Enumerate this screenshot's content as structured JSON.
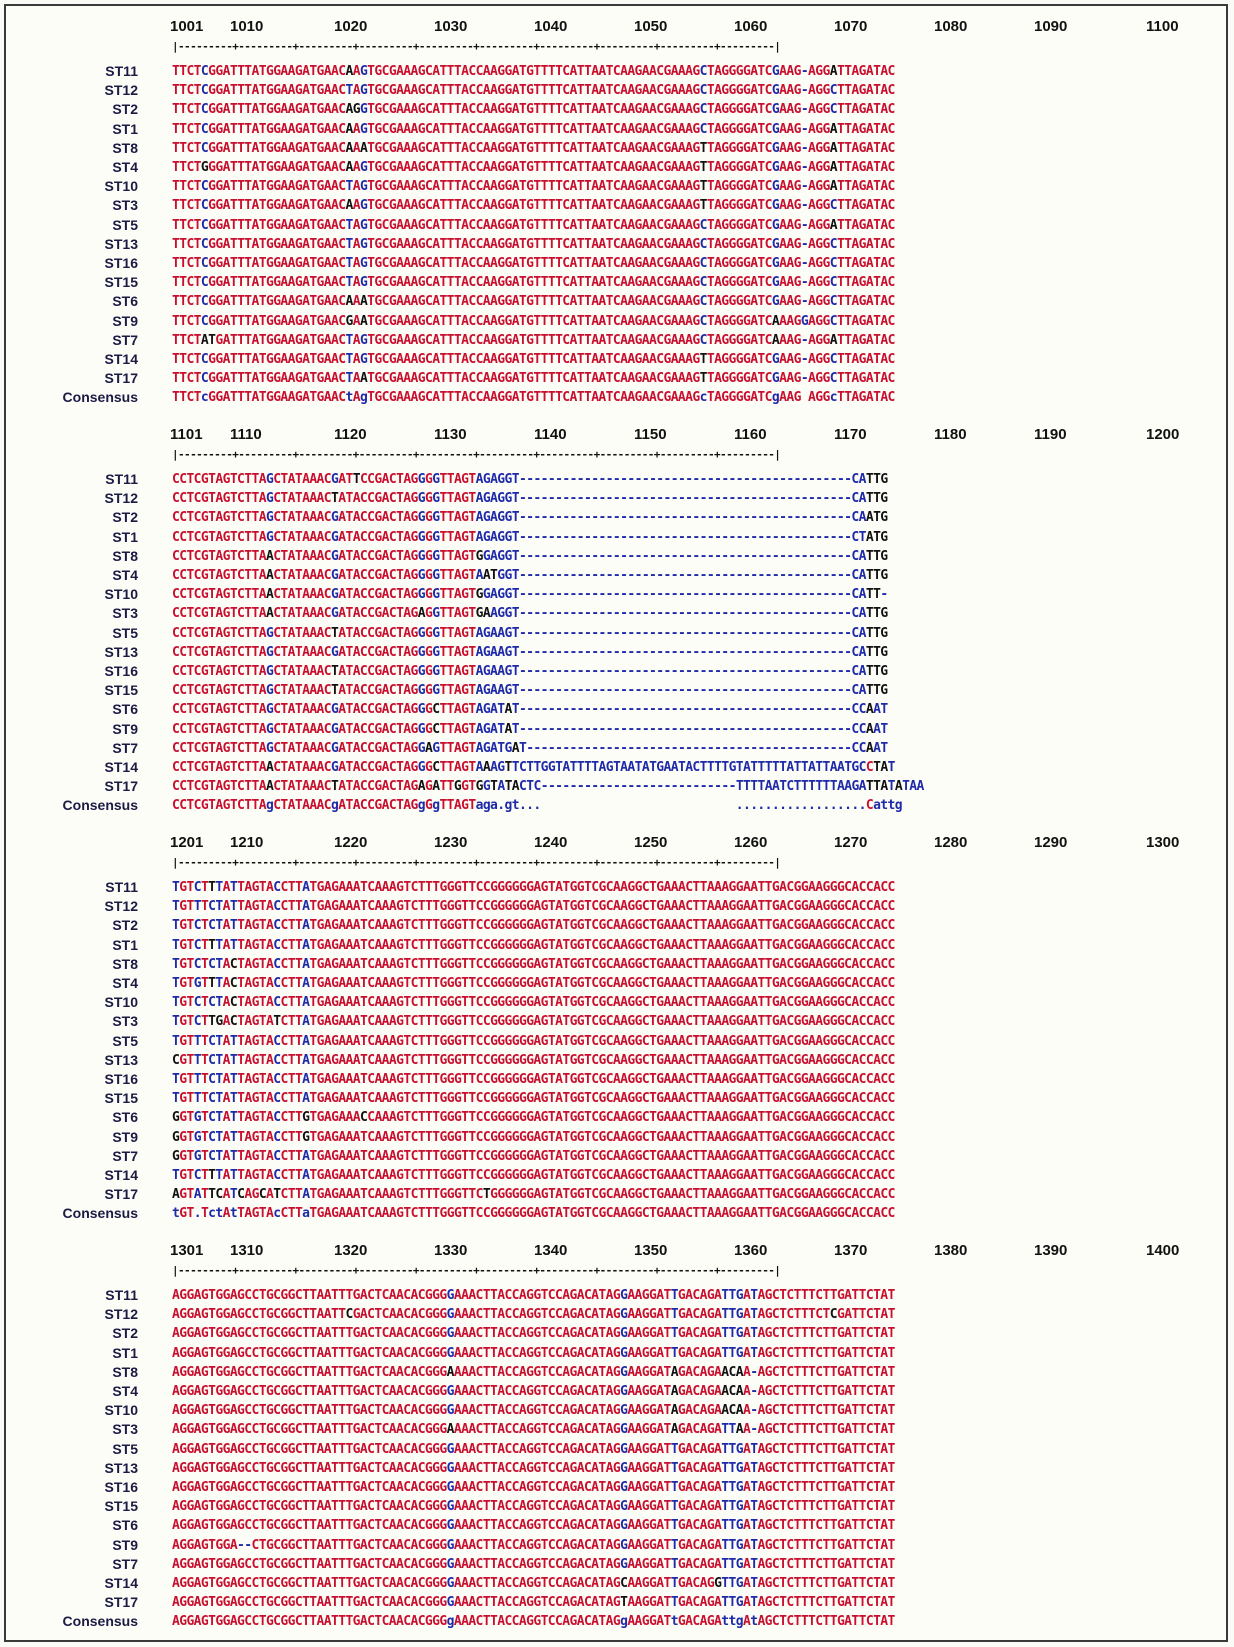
{
  "alignment": {
    "colors": {
      "high": "#c8102e",
      "low": "#1e2aa8",
      "neutral": "#111111"
    },
    "blocks": [
      {
        "start": "1001",
        "ticks": [
          "1001",
          "1010",
          "1020",
          "1030",
          "1040",
          "1050",
          "1060",
          "1070",
          "1080",
          "1090",
          "1100"
        ],
        "rows": [
          {
            "name": "ST11",
            "seq": "TTCTCGGATTTATGGAAGATGAACAAGTGCGAAAGCATTTACCAAGGATGTTTTCATTAATCAAGAACGAAAGCTAGGGGATCGAAG-AGGATTAGATAC"
          },
          {
            "name": "ST12",
            "seq": "TTCTCGGATTTATGGAAGATGAACTAGTGCGAAAGCATTTACCAAGGATGTTTTCATTAATCAAGAACGAAAGCTAGGGGATCGAAG-AGGCTTAGATAC"
          },
          {
            "name": "ST2",
            "seq": "TTCTCGGATTTATGGAAGATGAACAGGTGCGAAAGCATTTACCAAGGATGTTTTCATTAATCAAGAACGAAAGCTAGGGGATCGAAG-AGGCTTAGATAC"
          },
          {
            "name": "ST1",
            "seq": "TTCTCGGATTTATGGAAGATGAACAAGTGCGAAAGCATTTACCAAGGATGTTTTCATTAATCAAGAACGAAAGCTAGGGGATCGAAG-AGGATTAGATAC"
          },
          {
            "name": "ST8",
            "seq": "TTCTCGGATTTATGGAAGATGAACAAATGCGAAAGCATTTACCAAGGATGTTTTCATTAATCAAGAACGAAAGTTAGGGGATCGAAG-AGGATTAGATAC"
          },
          {
            "name": "ST4",
            "seq": "TTCTGGGATTTATGGAAGATGAACAAGTGCGAAAGCATTTACCAAGGATGTTTTCATTAATCAAGAACGAAAGTTAGGGGATCGAAG-AGGATTAGATAC"
          },
          {
            "name": "ST10",
            "seq": "TTCTCGGATTTATGGAAGATGAACTAGTGCGAAAGCATTTACCAAGGATGTTTTCATTAATCAAGAACGAAAGTTAGGGGATCGAAG-AGGATTAGATAC"
          },
          {
            "name": "ST3",
            "seq": "TTCTCGGATTTATGGAAGATGAACAAGTGCGAAAGCATTTACCAAGGATGTTTTCATTAATCAAGAACGAAAGTTAGGGGATCGAAG-AGGCTTAGATAC"
          },
          {
            "name": "ST5",
            "seq": "TTCTCGGATTTATGGAAGATGAACTAGTGCGAAAGCATTTACCAAGGATGTTTTCATTAATCAAGAACGAAAGCTAGGGGATCGAAG-AGGATTAGATAC"
          },
          {
            "name": "ST13",
            "seq": "TTCTCGGATTTATGGAAGATGAACTAGTGCGAAAGCATTTACCAAGGATGTTTTCATTAATCAAGAACGAAAGCTAGGGGATCGAAG-AGGCTTAGATAC"
          },
          {
            "name": "ST16",
            "seq": "TTCTCGGATTTATGGAAGATGAACTAGTGCGAAAGCATTTACCAAGGATGTTTTCATTAATCAAGAACGAAAGCTAGGGGATCGAAG-AGGCTTAGATAC"
          },
          {
            "name": "ST15",
            "seq": "TTCTCGGATTTATGGAAGATGAACTAGTGCGAAAGCATTTACCAAGGATGTTTTCATTAATCAAGAACGAAAGCTAGGGGATCGAAG-AGGCTTAGATAC"
          },
          {
            "name": "ST6",
            "seq": "TTCTCGGATTTATGGAAGATGAACAAATGCGAAAGCATTTACCAAGGATGTTTTCATTAATCAAGAACGAAAGCTAGGGGATCGAAG-AGGCTTAGATAC"
          },
          {
            "name": "ST9",
            "seq": "TTCTCGGATTTATGGAAGATGAACGAATGCGAAAGCATTTACCAAGGATGTTTTCATTAATCAAGAACGAAAGCTAGGGGATCAAAGGAGGCTTAGATAC"
          },
          {
            "name": "ST7",
            "seq": "TTCTATGATTTATGGAAGATGAACTAGTGCGAAAGCATTTACCAAGGATGTTTTCATTAATCAAGAACGAAAGCTAGGGGATCAAAG-AGGATTAGATAC"
          },
          {
            "name": "ST14",
            "seq": "TTCTCGGATTTATGGAAGATGAACTAGTGCGAAAGCATTTACCAAGGATGTTTTCATTAATCAAGAACGAAAGTTAGGGGATCGAAG-AGGCTTAGATAC"
          },
          {
            "name": "ST17",
            "seq": "TTCTCGGATTTATGGAAGATGAACTAATGCGAAAGCATTTACCAAGGATGTTTTCATTAATCAAGAACGAAAGTTAGGGGATCGAAG-AGGCTTAGATAC"
          },
          {
            "name": "Consensus",
            "seq": "TTCTcGGATTTATGGAAGATGAACtAgTGCGAAAGCATTTACCAAGGATGTTTTCATTAATCAAGAACGAAAGcTAGGGGATCgAAG AGGcTTAGATAC"
          }
        ]
      },
      {
        "start": "1101",
        "ticks": [
          "1101",
          "1110",
          "1120",
          "1130",
          "1140",
          "1150",
          "1160",
          "1170",
          "1180",
          "1190",
          "1200"
        ],
        "rows": [
          {
            "name": "ST11",
            "seq": "CCTCGTAGTCTTAGCTATAAACGATTCCGACTAGGGGTTAGTAGAGGT----------------------------------------------CATTG"
          },
          {
            "name": "ST12",
            "seq": "CCTCGTAGTCTTAGCTATAAACTATACCGACTAGGGGTTAGTAGAGGT----------------------------------------------CATTG"
          },
          {
            "name": "ST2",
            "seq": "CCTCGTAGTCTTAGCTATAAACGATACCGACTAGGGGTTAGTAGAGGT----------------------------------------------CAATG"
          },
          {
            "name": "ST1",
            "seq": "CCTCGTAGTCTTAGCTATAAACGATACCGACTAGGGGTTAGTAGAGGT----------------------------------------------CTATG"
          },
          {
            "name": "ST8",
            "seq": "CCTCGTAGTCTTAACTATAAACGATACCGACTAGGGGTTAGTGGAGGT----------------------------------------------CATTG"
          },
          {
            "name": "ST4",
            "seq": "CCTCGTAGTCTTAACTATAAACGATACCGACTAGGGGTTAGTAATGGT----------------------------------------------CATTG"
          },
          {
            "name": "ST10",
            "seq": "CCTCGTAGTCTTAACTATAAACGATACCGACTAGGGGTTAGTGGAGGT----------------------------------------------CATT-"
          },
          {
            "name": "ST3",
            "seq": "CCTCGTAGTCTTAACTATAAACGATACCGACTAGAGGTTAGTGAAGGT----------------------------------------------CATTG"
          },
          {
            "name": "ST5",
            "seq": "CCTCGTAGTCTTAGCTATAAACTATACCGACTAGGGGTTAGTAGAAGT----------------------------------------------CATTG"
          },
          {
            "name": "ST13",
            "seq": "CCTCGTAGTCTTAGCTATAAACGATACCGACTAGGGGTTAGTAGAAGT----------------------------------------------CATTG"
          },
          {
            "name": "ST16",
            "seq": "CCTCGTAGTCTTAGCTATAAACTATACCGACTAGGGGTTAGTAGAAGT----------------------------------------------CATTG"
          },
          {
            "name": "ST15",
            "seq": "CCTCGTAGTCTTAGCTATAAACTATACCGACTAGGGGTTAGTAGAAGT----------------------------------------------CATTG"
          },
          {
            "name": "ST6",
            "seq": "CCTCGTAGTCTTAGCTATAAACGATACCGACTAGGGCTTAGTAGATAT----------------------------------------------CCAAT"
          },
          {
            "name": "ST9",
            "seq": "CCTCGTAGTCTTAGCTATAAACGATACCGACTAGGGCTTAGTAGATAT----------------------------------------------CCAAT"
          },
          {
            "name": "ST7",
            "seq": "CCTCGTAGTCTTAGCTATAAACGATACCGACTAGGAGTTAGTAGATGAT---------------------------------------------CCAAT"
          },
          {
            "name": "ST14",
            "seq": "CCTCGTAGTCTTAACTATAAACGATACCGACTAGGGCTTAGTAAAGTTCTTGGTATTTTAGTAATATGAATACTTTTGTATTTTTATTATTAATGCCTAT"
          },
          {
            "name": "ST17",
            "seq": "CCTCGTAGTCTTAACTATAAACTATACCGACTAGAGATTGGTGGTATACTC---------------------------TTTTAATCTTTTTTAAGATTATATAA"
          },
          {
            "name": "Consensus",
            "seq": "CCTCGTAGTCTTAgCTATAAACgATACCGACTAGgGgTTAGTaga.gt...                           ..................Cattg"
          }
        ]
      },
      {
        "start": "1201",
        "ticks": [
          "1201",
          "1210",
          "1220",
          "1230",
          "1240",
          "1250",
          "1260",
          "1270",
          "1280",
          "1290",
          "1300"
        ],
        "rows": [
          {
            "name": "ST11",
            "seq": "TGTCTTTATTAGTACCTTATGAGAAATCAAAGTCTTTGGGTTCCGGGGGGAGTATGGTCGCAAGGCTGAAACTTAAAGGAATTGACGGAAGGGCACCACC"
          },
          {
            "name": "ST12",
            "seq": "TGTTTCTATTAGTACCTTATGAGAAATCAAAGTCTTTGGGTTCCGGGGGGAGTATGGTCGCAAGGCTGAAACTTAAAGGAATTGACGGAAGGGCACCACC"
          },
          {
            "name": "ST2",
            "seq": "TGTCTCTATTAGTACCTTATGAGAAATCAAAGTCTTTGGGTTCCGGGGGGAGTATGGTCGCAAGGCTGAAACTTAAAGGAATTGACGGAAGGGCACCACC"
          },
          {
            "name": "ST1",
            "seq": "TGTCTTTATTAGTACCTTATGAGAAATCAAAGTCTTTGGGTTCCGGGGGGAGTATGGTCGCAAGGCTGAAACTTAAAGGAATTGACGGAAGGGCACCACC"
          },
          {
            "name": "ST8",
            "seq": "TGTCTCTACTAGTACCTTATGAGAAATCAAAGTCTTTGGGTTCCGGGGGGAGTATGGTCGCAAGGCTGAAACTTAAAGGAATTGACGGAAGGGCACCACC"
          },
          {
            "name": "ST4",
            "seq": "TGTGTTTACTAGTACCTTATGAGAAATCAAAGTCTTTGGGTTCCGGGGGGAGTATGGTCGCAAGGCTGAAACTTAAAGGAATTGACGGAAGGGCACCACC"
          },
          {
            "name": "ST10",
            "seq": "TGTCTCTACTAGTACCTTATGAGAAATCAAAGTCTTTGGGTTCCGGGGGGAGTATGGTCGCAAGGCTGAAACTTAAAGGAATTGACGGAAGGGCACCACC"
          },
          {
            "name": "ST3",
            "seq": "TGTCTTGACTAGTATCTTATGAGAAATCAAAGTCTTTGGGTTCCGGGGGGAGTATGGTCGCAAGGCTGAAACTTAAAGGAATTGACGGAAGGGCACCACC"
          },
          {
            "name": "ST5",
            "seq": "TGTTTCTATTAGTACCTTATGAGAAATCAAAGTCTTTGGGTTCCGGGGGGAGTATGGTCGCAAGGCTGAAACTTAAAGGAATTGACGGAAGGGCACCACC"
          },
          {
            "name": "ST13",
            "seq": "CGTTTCTATTAGTACCTTATGAGAAATCAAAGTCTTTGGGTTCCGGGGGGAGTATGGTCGCAAGGCTGAAACTTAAAGGAATTGACGGAAGGGCACCACC"
          },
          {
            "name": "ST16",
            "seq": "TGTTTCTATTAGTACCTTATGAGAAATCAAAGTCTTTGGGTTCCGGGGGGAGTATGGTCGCAAGGCTGAAACTTAAAGGAATTGACGGAAGGGCACCACC"
          },
          {
            "name": "ST15",
            "seq": "TGTTTCTATTAGTACCTTATGAGAAATCAAAGTCTTTGGGTTCCGGGGGGAGTATGGTCGCAAGGCTGAAACTTAAAGGAATTGACGGAAGGGCACCACC"
          },
          {
            "name": "ST6",
            "seq": "GGTGTCTATTAGTACCTTGTGAGAAACCAAAGTCTTTGGGTTCCGGGGGGAGTATGGTCGCAAGGCTGAAACTTAAAGGAATTGACGGAAGGGCACCACC"
          },
          {
            "name": "ST9",
            "seq": "GGTGTCTATTAGTACCTTGTGAGAAATCAAAGTCTTTGGGTTCCGGGGGGAGTATGGTCGCAAGGCTGAAACTTAAAGGAATTGACGGAAGGGCACCACC"
          },
          {
            "name": "ST7",
            "seq": "GGTGTCTATTAGTACCTTATGAGAAATCAAAGTCTTTGGGTTCCGGGGGGAGTATGGTCGCAAGGCTGAAACTTAAAGGAATTGACGGAAGGGCACCACC"
          },
          {
            "name": "ST14",
            "seq": "TGTCTTTATTAGTACCTTATGAGAAATCAAAGTCTTTGGGTTCCGGGGGGAGTATGGTCGCAAGGCTGAAACTTAAAGGAATTGACGGAAGGGCACCACC"
          },
          {
            "name": "ST17",
            "seq": "AGTATTCATCAGCATCTTATGAGAAATCAAAGTCTTTGGGTTCTGGGGGGAGTATGGTCGCAAGGCTGAAACTTAAAGGAATTGACGGAAGGGCACCACC"
          },
          {
            "name": "Consensus",
            "seq": "tGT.TctAtTAGTAcCTTaTGAGAAATCAAAGTCTTTGGGTTCCGGGGGGAGTATGGTCGCAAGGCTGAAACTTAAAGGAATTGACGGAAGGGCACCACC"
          }
        ]
      },
      {
        "start": "1301",
        "ticks": [
          "1301",
          "1310",
          "1320",
          "1330",
          "1340",
          "1350",
          "1360",
          "1370",
          "1380",
          "1390",
          "1400"
        ],
        "rows": [
          {
            "name": "ST11",
            "seq": "AGGAGTGGAGCCTGCGGCTTAATTTGACTCAACACGGGGAAACTTACCAGGTCCAGACATAGGAAGGATTGACAGATTGATAGCTCTTTCTTGATTCTAT"
          },
          {
            "name": "ST12",
            "seq": "AGGAGTGGAGCCTGCGGCTTAATTCGACTCAACACGGGGAAACTTACCAGGTCCAGACATAGGAAGGATTGACAGATTGATAGCTCTTTCTCGATTCTAT"
          },
          {
            "name": "ST2",
            "seq": "AGGAGTGGAGCCTGCGGCTTAATTTGACTCAACACGGGGAAACTTACCAGGTCCAGACATAGGAAGGATTGACAGATTGATAGCTCTTTCTTGATTCTAT"
          },
          {
            "name": "ST1",
            "seq": "AGGAGTGGAGCCTGCGGCTTAATTTGACTCAACACGGGGAAACTTACCAGGTCCAGACATAGGAAGGATTGACAGATTGATAGCTCTTTCTTGATTCTAT"
          },
          {
            "name": "ST8",
            "seq": "AGGAGTGGAGCCTGCGGCTTAATTTGACTCAACACGGGAAAACTTACCAGGTCCAGACATAGGAAGGATAGACAGAACAA-AGCTCTTTCTTGATTCTAT"
          },
          {
            "name": "ST4",
            "seq": "AGGAGTGGAGCCTGCGGCTTAATTTGACTCAACACGGGGAAACTTACCAGGTCCAGACATAGGAAGGATAGACAGAACAA-AGCTCTTTCTTGATTCTAT"
          },
          {
            "name": "ST10",
            "seq": "AGGAGTGGAGCCTGCGGCTTAATTTGACTCAACACGGGGAAACTTACCAGGTCCAGACATAGGAAGGATAGACAGAACAA-AGCTCTTTCTTGATTCTAT"
          },
          {
            "name": "ST3",
            "seq": "AGGAGTGGAGCCTGCGGCTTAATTTGACTCAACACGGGAAAACTTACCAGGTCCAGACATAGGAAGGATAGACAGATTAA-AGCTCTTTCTTGATTCTAT"
          },
          {
            "name": "ST5",
            "seq": "AGGAGTGGAGCCTGCGGCTTAATTTGACTCAACACGGGGAAACTTACCAGGTCCAGACATAGGAAGGATTGACAGATTGATAGCTCTTTCTTGATTCTAT"
          },
          {
            "name": "ST13",
            "seq": "AGGAGTGGAGCCTGCGGCTTAATTTGACTCAACACGGGGAAACTTACCAGGTCCAGACATAGGAAGGATTGACAGATTGATAGCTCTTTCTTGATTCTAT"
          },
          {
            "name": "ST16",
            "seq": "AGGAGTGGAGCCTGCGGCTTAATTTGACTCAACACGGGGAAACTTACCAGGTCCAGACATAGGAAGGATTGACAGATTGATAGCTCTTTCTTGATTCTAT"
          },
          {
            "name": "ST15",
            "seq": "AGGAGTGGAGCCTGCGGCTTAATTTGACTCAACACGGGGAAACTTACCAGGTCCAGACATAGGAAGGATTGACAGATTGATAGCTCTTTCTTGATTCTAT"
          },
          {
            "name": "ST6",
            "seq": "AGGAGTGGAGCCTGCGGCTTAATTTGACTCAACACGGGGAAACTTACCAGGTCCAGACATAGGAAGGATTGACAGATTGATAGCTCTTTCTTGATTCTAT"
          },
          {
            "name": "ST9",
            "seq": "AGGAGTGGA--CTGCGGCTTAATTTGACTCAACACGGGGAAACTTACCAGGTCCAGACATAGGAAGGATTGACAGATTGATAGCTCTTTCTTGATTCTAT"
          },
          {
            "name": "ST7",
            "seq": "AGGAGTGGAGCCTGCGGCTTAATTTGACTCAACACGGGGAAACTTACCAGGTCCAGACATAGGAAGGATTGACAGATTGATAGCTCTTTCTTGATTCTAT"
          },
          {
            "name": "ST14",
            "seq": "AGGAGTGGAGCCTGCGGCTTAATTTGACTCAACACGGGGAAACTTACCAGGTCCAGACATAGCAAGGATTGACAGGTTGATAGCTCTTTCTTGATTCTAT"
          },
          {
            "name": "ST17",
            "seq": "AGGAGTGGAGCCTGCGGCTTAATTTGACTCAACACGGGGAAACTTACCAGGTCCAGACATAGTAAGGATTGACAGATTGATAGCTCTTTCTTGATTCTAT"
          },
          {
            "name": "Consensus",
            "seq": "AGGAGTGGAGCCTGCGGCTTAATTTGACTCAACACGGGgAAACTTACCAGGTCCAGACATAGgAAGGATtGACAGAttgAtAGCTCTTTCTTGATTCTAT"
          }
        ]
      }
    ]
  }
}
